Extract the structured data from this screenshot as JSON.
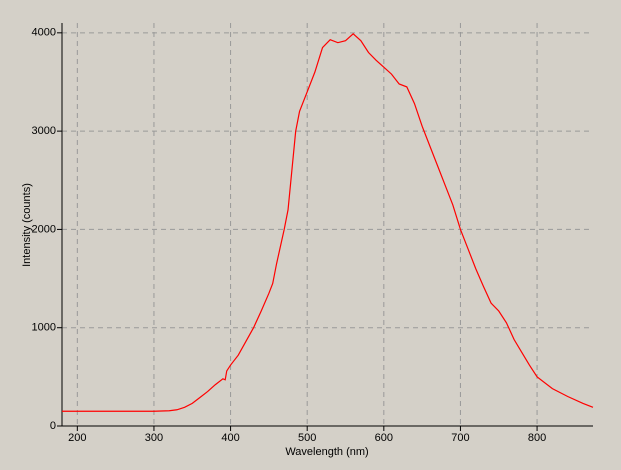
{
  "chart_data": {
    "type": "line",
    "x_label": "Wavelength (nm)",
    "y_label": "Intensity (counts)",
    "xlim": [
      180,
      873
    ],
    "ylim": [
      0,
      4100
    ],
    "xticks": [
      200,
      300,
      400,
      500,
      600,
      700,
      800
    ],
    "yticks": [
      0,
      1000,
      2000,
      3000,
      4000
    ],
    "grid": true,
    "series": [
      {
        "color": "#ff0000",
        "x": [
          180,
          200,
          250,
          300,
          320,
          330,
          340,
          350,
          360,
          370,
          380,
          390,
          393,
          395,
          400,
          410,
          420,
          430,
          440,
          450,
          455,
          460,
          470,
          475,
          480,
          485,
          490,
          500,
          510,
          520,
          530,
          540,
          550,
          560,
          570,
          580,
          590,
          600,
          610,
          620,
          630,
          640,
          650,
          660,
          670,
          680,
          690,
          700,
          710,
          720,
          730,
          740,
          750,
          760,
          770,
          780,
          790,
          800,
          820,
          840,
          860,
          873
        ],
        "values": [
          150,
          150,
          150,
          150,
          155,
          165,
          190,
          230,
          290,
          350,
          420,
          480,
          470,
          560,
          620,
          720,
          860,
          1000,
          1170,
          1350,
          1450,
          1650,
          2000,
          2200,
          2600,
          3000,
          3200,
          3400,
          3600,
          3850,
          3930,
          3900,
          3920,
          3990,
          3920,
          3800,
          3720,
          3650,
          3580,
          3480,
          3450,
          3280,
          3050,
          2850,
          2650,
          2450,
          2250,
          2000,
          1800,
          1600,
          1420,
          1250,
          1170,
          1050,
          880,
          750,
          620,
          500,
          380,
          300,
          230,
          190
        ]
      }
    ]
  }
}
